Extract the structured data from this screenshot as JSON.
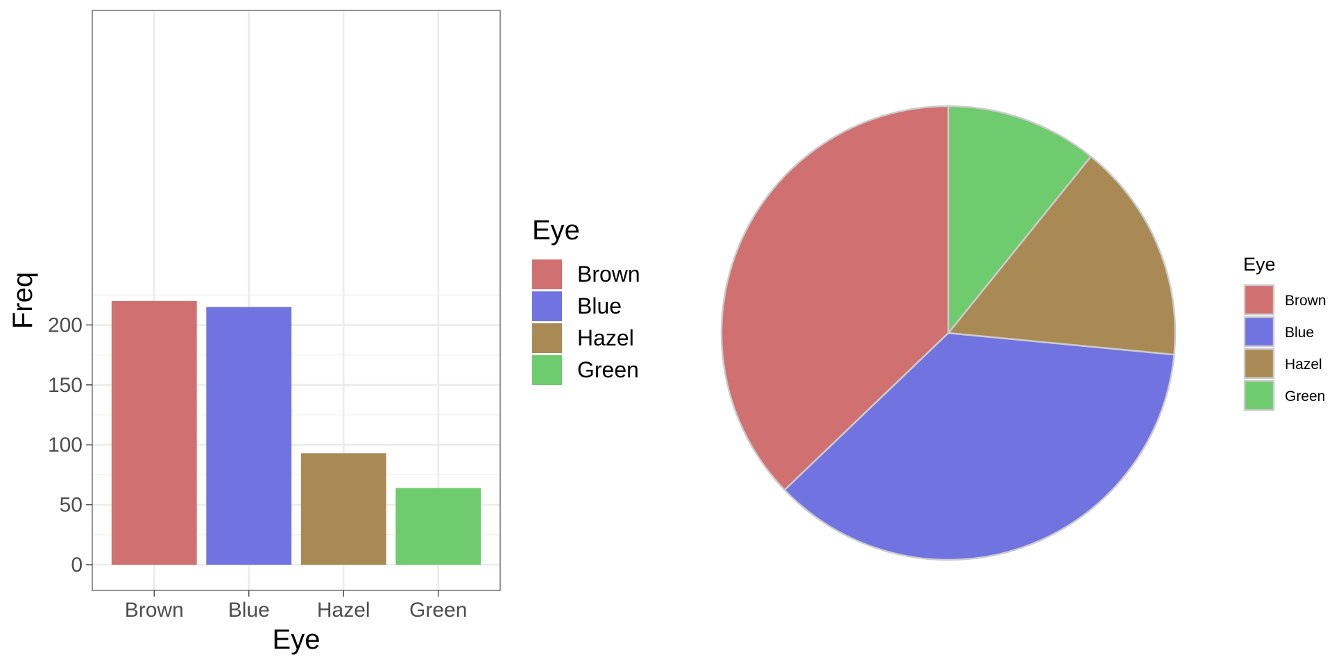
{
  "chart_data": [
    {
      "type": "bar",
      "categories": [
        "Brown",
        "Blue",
        "Hazel",
        "Green"
      ],
      "values": [
        220,
        215,
        93,
        64
      ],
      "xlabel": "Eye",
      "ylabel": "Freq",
      "ylim": [
        0,
        225
      ],
      "yticks": [
        0,
        50,
        100,
        150,
        200
      ],
      "grid": true,
      "legend": {
        "title": "Eye",
        "placement": "right",
        "entries": [
          "Brown",
          "Blue",
          "Hazel",
          "Green"
        ]
      },
      "colors": [
        "#d07070",
        "#7173e0",
        "#a98a55",
        "#6ecb6e"
      ]
    },
    {
      "type": "pie",
      "labels": [
        "Brown",
        "Blue",
        "Hazel",
        "Green"
      ],
      "values": [
        220,
        215,
        93,
        64
      ],
      "legend": {
        "title": "Eye",
        "placement": "right",
        "entries": [
          "Brown",
          "Blue",
          "Hazel",
          "Green"
        ]
      },
      "colors": [
        "#d07070",
        "#7173e0",
        "#a98a55",
        "#6ecb6e"
      ],
      "slice_border_color": "#cccccc"
    }
  ]
}
